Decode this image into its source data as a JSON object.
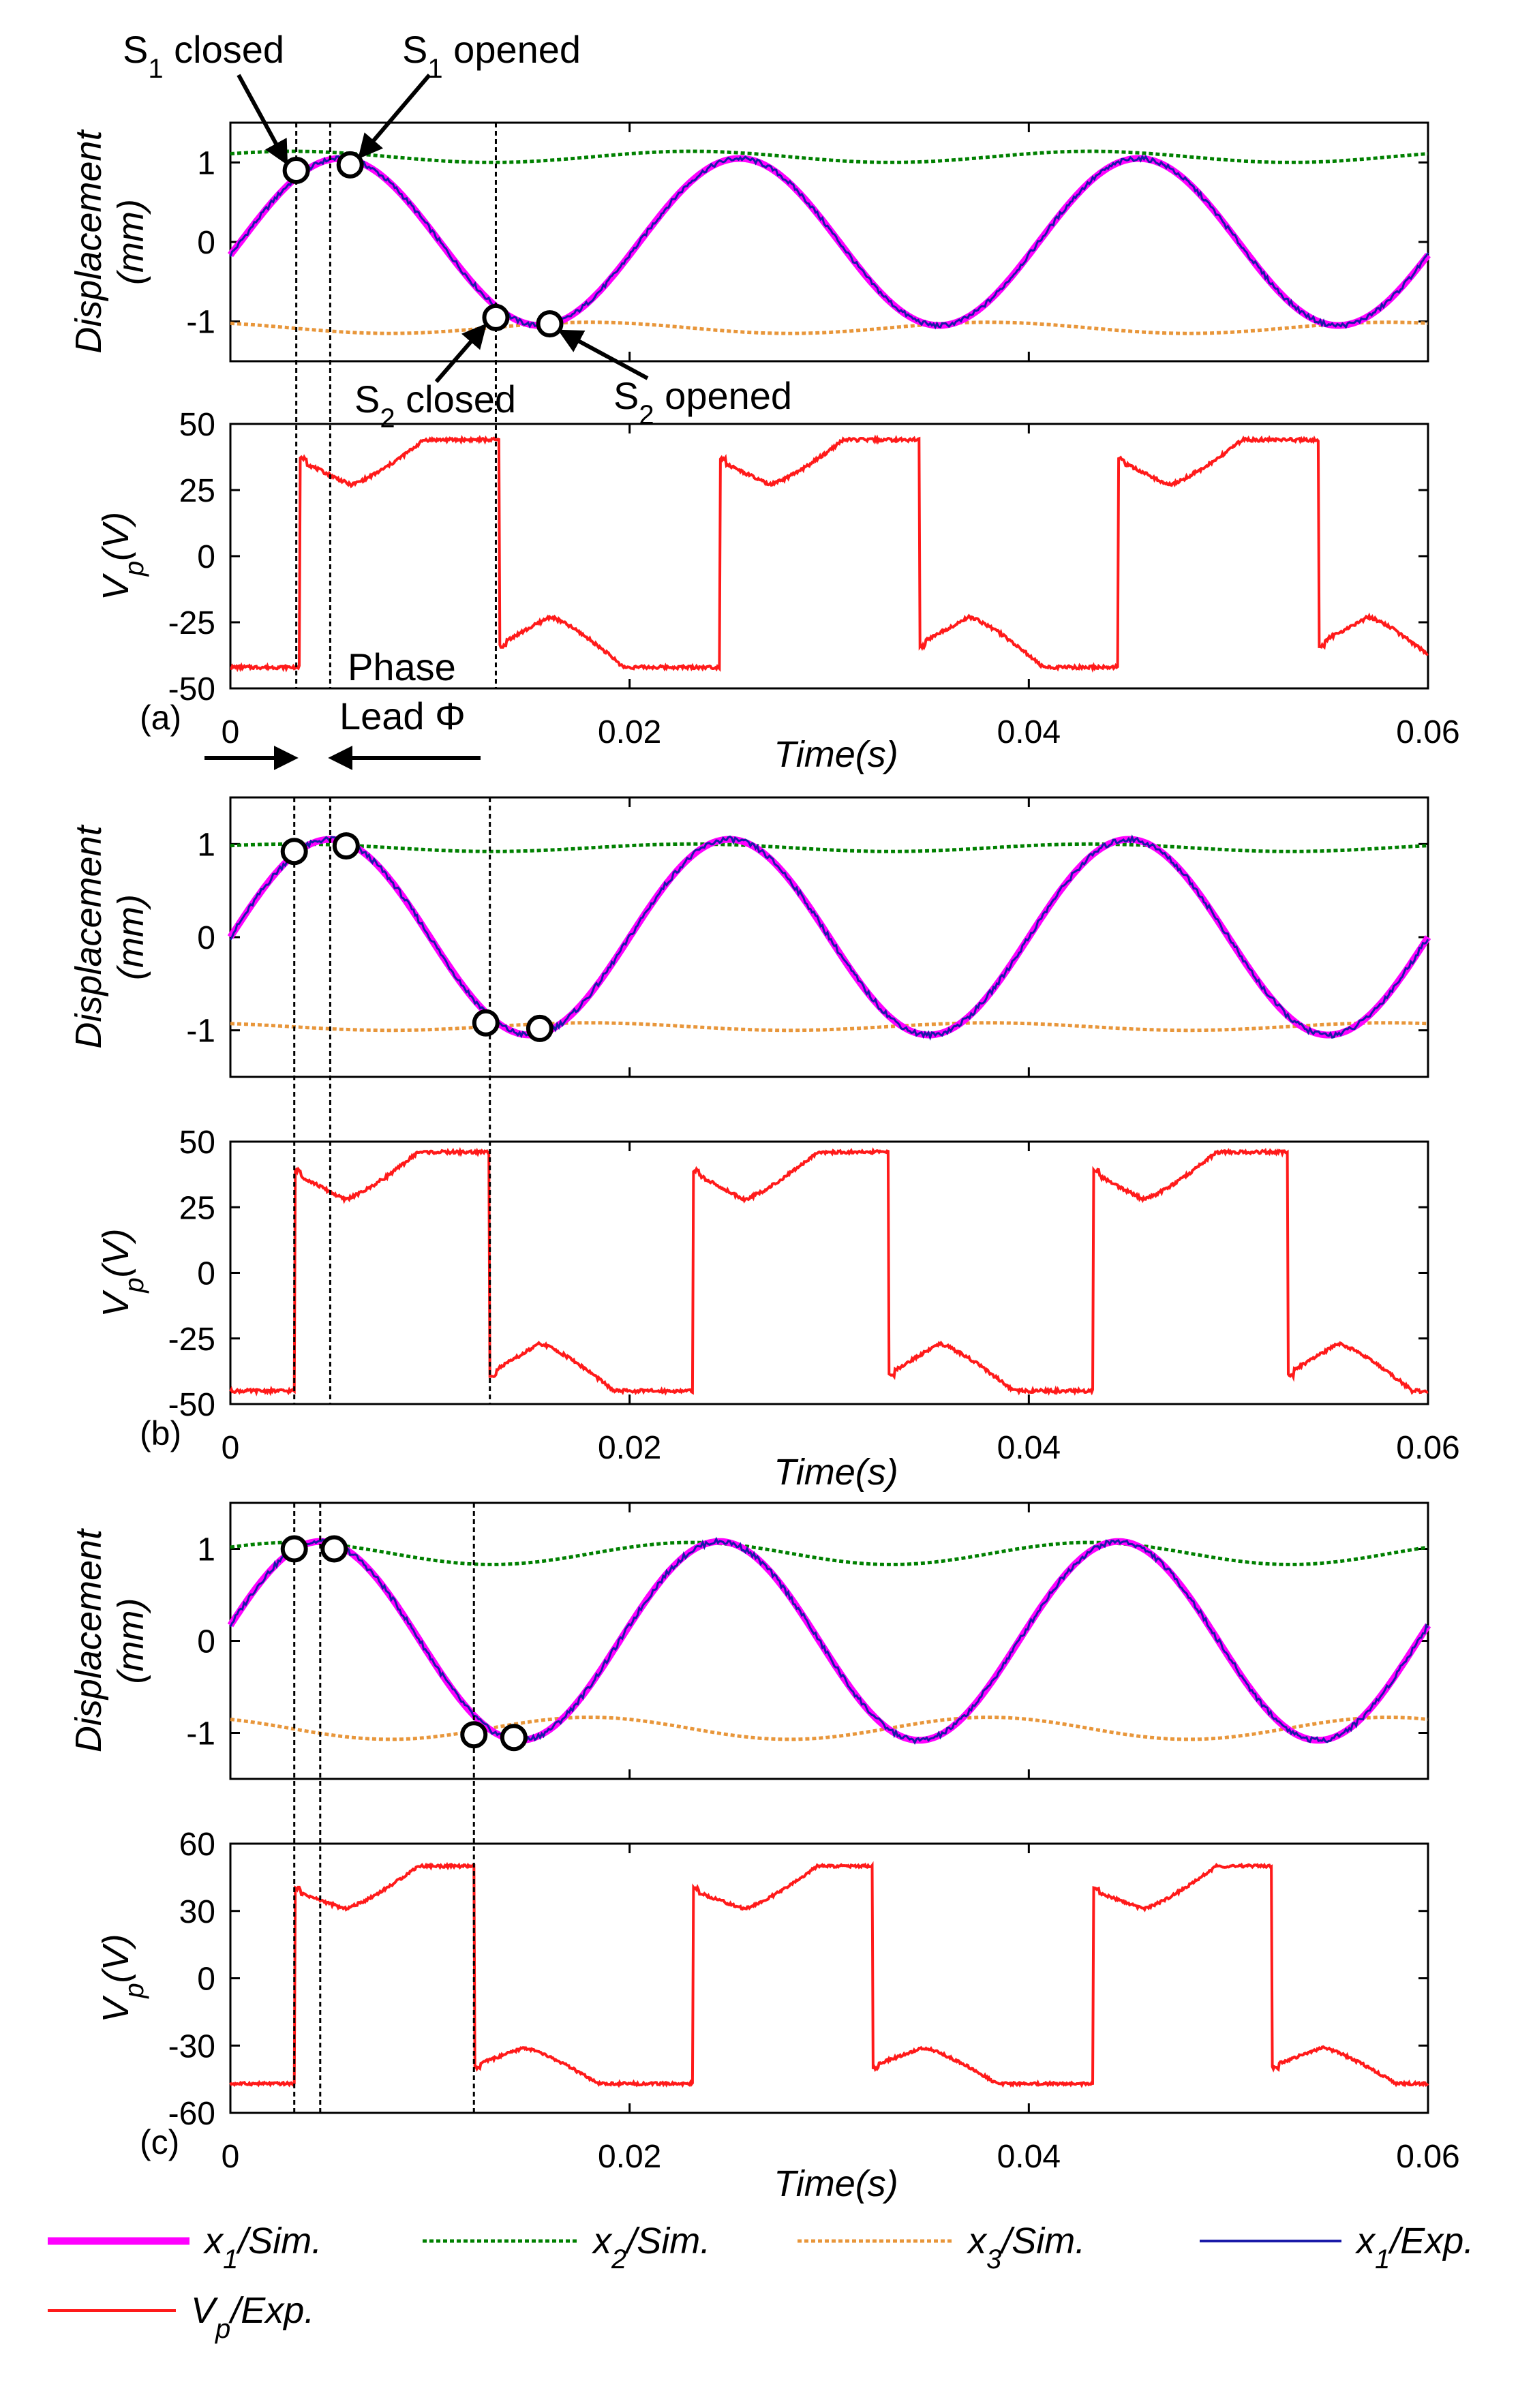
{
  "colors": {
    "x1_sim": "#ff00ff",
    "x2_sim": "#008000",
    "x3_sim": "#e8963a",
    "x1_exp": "#1a1aa8",
    "vp_exp": "#ff1a1a"
  },
  "labels": {
    "disp_ylabel": "Displacement",
    "disp_unit": "(mm)",
    "vp_v": "V",
    "vp_sub": "p",
    "vp_unit": "(V)",
    "xlabel": "Time(s)",
    "s1_closed": "S1 closed",
    "s1_opened": "S1 opened",
    "s2_closed": "S2 closed",
    "s2_opened": "S2 opened",
    "phase": "Phase",
    "lead": "Lead Φ"
  },
  "legend": [
    {
      "key": "x1_sim",
      "base": "x",
      "sub": "1",
      "rest": "/Sim."
    },
    {
      "key": "x2_sim",
      "base": "x",
      "sub": "2",
      "rest": "/Sim."
    },
    {
      "key": "x3_sim",
      "base": "x",
      "sub": "3",
      "rest": "/Sim."
    },
    {
      "key": "x1_exp",
      "base": "x",
      "sub": "1",
      "rest": "/Exp."
    },
    {
      "key": "vp_exp",
      "base": "V",
      "sub": "p",
      "rest": "/Exp."
    }
  ],
  "chart_data": [
    {
      "panel": "a",
      "type": "line",
      "title": "",
      "xlabel": "Time(s)",
      "xlim": [
        0,
        0.06
      ],
      "xticks": [
        "0",
        "0.02",
        "0.04",
        "0.06"
      ],
      "displacement": {
        "ylabel": "Displacement (mm)",
        "ylim": [
          -1.5,
          1.5
        ],
        "yticks": [
          "-1",
          "0",
          "1"
        ],
        "x1": {
          "amplitude": 1.05,
          "period": 0.02,
          "peaks": [
            0.0055,
            0.026,
            0.046
          ],
          "troughs": [
            0.0155,
            0.036,
            0.056
          ]
        },
        "x2": {
          "mean": 1.07,
          "amplitude": 0.07
        },
        "x3": {
          "mean": -1.08,
          "amplitude": 0.07
        },
        "markers": [
          {
            "label": "S1 closed",
            "t": 0.0033,
            "y": 0.9
          },
          {
            "label": "S1 opened",
            "t": 0.006,
            "y": 0.97
          },
          {
            "label": "S2 closed",
            "t": 0.0133,
            "y": -0.95
          },
          {
            "label": "S2 opened",
            "t": 0.016,
            "y": -1.03
          }
        ]
      },
      "vp": {
        "ylabel": "Vp(V)",
        "ylim": [
          -50,
          50
        ],
        "yticks": [
          "-50",
          "-25",
          "0",
          "25",
          "50"
        ],
        "high": 44,
        "low": -42,
        "jump_after_close": 35,
        "dip_after_close": 27,
        "jump_after_open": -32,
        "dip_after_open": -23,
        "switch_up": [
          0.0035,
          0.0245,
          0.0445
        ],
        "switch_down": [
          0.0135,
          0.0345,
          0.0545
        ]
      },
      "guides": [
        0.0033,
        0.005,
        0.0133
      ]
    },
    {
      "panel": "b",
      "type": "line",
      "title": "",
      "xlabel": "Time(s)",
      "xlim": [
        0,
        0.06
      ],
      "xticks": [
        "0",
        "0.02",
        "0.04",
        "0.06"
      ],
      "displacement": {
        "ylabel": "Displacement (mm)",
        "ylim": [
          -1.5,
          1.5
        ],
        "yticks": [
          "-1",
          "0",
          "1"
        ],
        "x1": {
          "amplitude": 1.05,
          "period": 0.02,
          "peaks": [
            0.005,
            0.025,
            0.045
          ],
          "troughs": [
            0.015,
            0.035,
            0.055
          ]
        },
        "x2": {
          "mean": 0.96,
          "amplitude": 0.04
        },
        "x3": {
          "mean": -0.96,
          "amplitude": 0.04
        },
        "markers": [
          {
            "label": "S1 closed",
            "t": 0.0032,
            "y": 0.92
          },
          {
            "label": "S1 opened",
            "t": 0.0058,
            "y": 0.98
          },
          {
            "label": "S2 closed",
            "t": 0.0128,
            "y": -0.92
          },
          {
            "label": "S2 opened",
            "t": 0.0155,
            "y": -0.98
          }
        ]
      },
      "vp": {
        "ylabel": "Vp(V)",
        "ylim": [
          -50,
          50
        ],
        "yticks": [
          "-50",
          "-25",
          "0",
          "25",
          "50"
        ],
        "high": 46,
        "low": -45,
        "jump_after_close": 37,
        "dip_after_close": 28,
        "jump_after_open": -37,
        "dip_after_open": -27,
        "switch_up": [
          0.0032,
          0.0232,
          0.0432
        ],
        "switch_down": [
          0.013,
          0.033,
          0.053
        ]
      },
      "guides": [
        0.0032,
        0.005,
        0.013
      ]
    },
    {
      "panel": "c",
      "type": "line",
      "title": "",
      "xlabel": "Time(s)",
      "xlim": [
        0,
        0.06
      ],
      "xticks": [
        "0",
        "0.02",
        "0.04",
        "0.06"
      ],
      "displacement": {
        "ylabel": "Displacement (mm)",
        "ylim": [
          -1.5,
          1.5
        ],
        "yticks": [
          "-1",
          "0",
          "1"
        ],
        "x1": {
          "amplitude": 1.08,
          "period": 0.02,
          "peaks": [
            0.0045,
            0.0245,
            0.0445
          ],
          "troughs": [
            0.0145,
            0.0345,
            0.0545
          ]
        },
        "x2": {
          "mean": 0.95,
          "amplitude": 0.12
        },
        "x3": {
          "mean": -0.95,
          "amplitude": 0.12
        },
        "markers": [
          {
            "label": "S1 closed",
            "t": 0.0032,
            "y": 1.0
          },
          {
            "label": "S1 opened",
            "t": 0.0052,
            "y": 1.0
          },
          {
            "label": "S2 closed",
            "t": 0.0122,
            "y": -1.02
          },
          {
            "label": "S2 opened",
            "t": 0.0142,
            "y": -1.05
          }
        ]
      },
      "vp": {
        "ylabel": "Vp(V)",
        "ylim": [
          -60,
          60
        ],
        "yticks": [
          "-60",
          "-30",
          "0",
          "30",
          "60"
        ],
        "high": 50,
        "low": -47,
        "jump_after_close": 38,
        "dip_after_close": 31,
        "jump_after_open": -38,
        "dip_after_open": -31,
        "switch_up": [
          0.0032,
          0.0232,
          0.0432
        ],
        "switch_down": [
          0.0122,
          0.0322,
          0.0522
        ]
      },
      "guides": [
        0.0032,
        0.0045,
        0.0122
      ]
    }
  ]
}
